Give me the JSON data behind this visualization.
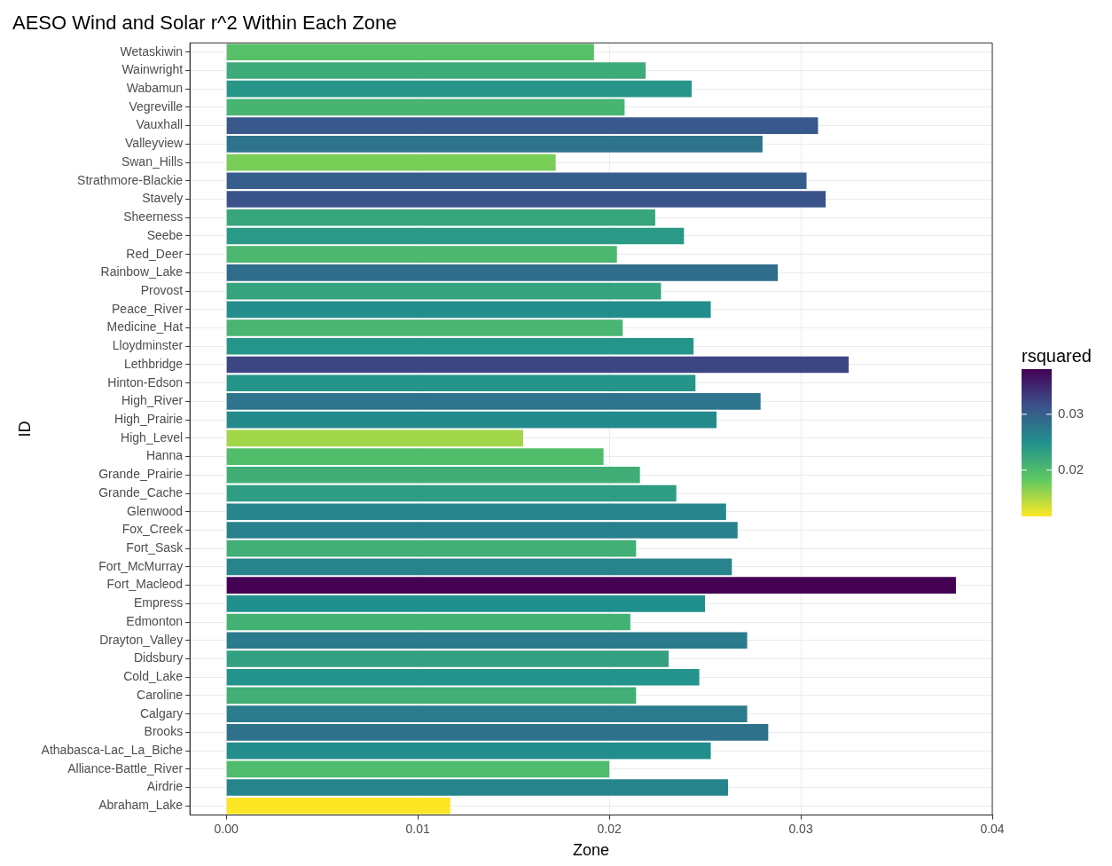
{
  "chart_data": {
    "type": "bar",
    "orientation": "horizontal",
    "title": "AESO Wind and Solar r^2 Within Each Zone",
    "xlabel": "Zone",
    "ylabel": "ID",
    "categories": [
      "Wetaskiwin",
      "Wainwright",
      "Wabamun",
      "Vegreville",
      "Vauxhall",
      "Valleyview",
      "Swan_Hills",
      "Strathmore-Blackie",
      "Stavely",
      "Sheerness",
      "Seebe",
      "Red_Deer",
      "Rainbow_Lake",
      "Provost",
      "Peace_River",
      "Medicine_Hat",
      "Lloydminster",
      "Lethbridge",
      "Hinton-Edson",
      "High_River",
      "High_Prairie",
      "High_Level",
      "Hanna",
      "Grande_Prairie",
      "Grande_Cache",
      "Glenwood",
      "Fox_Creek",
      "Fort_Sask",
      "Fort_McMurray",
      "Fort_Macleod",
      "Empress",
      "Edmonton",
      "Drayton_Valley",
      "Didsbury",
      "Cold_Lake",
      "Caroline",
      "Calgary",
      "Brooks",
      "Athabasca-Lac_La_Biche",
      "Alliance-Battle_River",
      "Airdrie",
      "Abraham_Lake"
    ],
    "values": [
      0.0192,
      0.0219,
      0.0243,
      0.0208,
      0.0309,
      0.028,
      0.0172,
      0.0303,
      0.0313,
      0.0224,
      0.0239,
      0.0204,
      0.0288,
      0.0227,
      0.0253,
      0.0207,
      0.0244,
      0.0325,
      0.0245,
      0.0279,
      0.0256,
      0.0155,
      0.0197,
      0.0216,
      0.0235,
      0.0261,
      0.0267,
      0.0214,
      0.0264,
      0.0381,
      0.025,
      0.0211,
      0.0272,
      0.0231,
      0.0247,
      0.0214,
      0.0272,
      0.0283,
      0.0253,
      0.02,
      0.0262,
      0.0117
    ],
    "xlim": [
      -0.0019,
      0.04
    ],
    "xticks": [
      {
        "value": 0,
        "label": "0.00"
      },
      {
        "value": 0.01,
        "label": "0.01"
      },
      {
        "value": 0.02,
        "label": "0.02"
      },
      {
        "value": 0.03,
        "label": "0.03"
      },
      {
        "value": 0.04,
        "label": "0.04"
      }
    ],
    "clabel": "rsquared",
    "clim": [
      0.0117,
      0.0381
    ],
    "cticks": [
      0.02,
      0.03
    ],
    "grid": true
  }
}
